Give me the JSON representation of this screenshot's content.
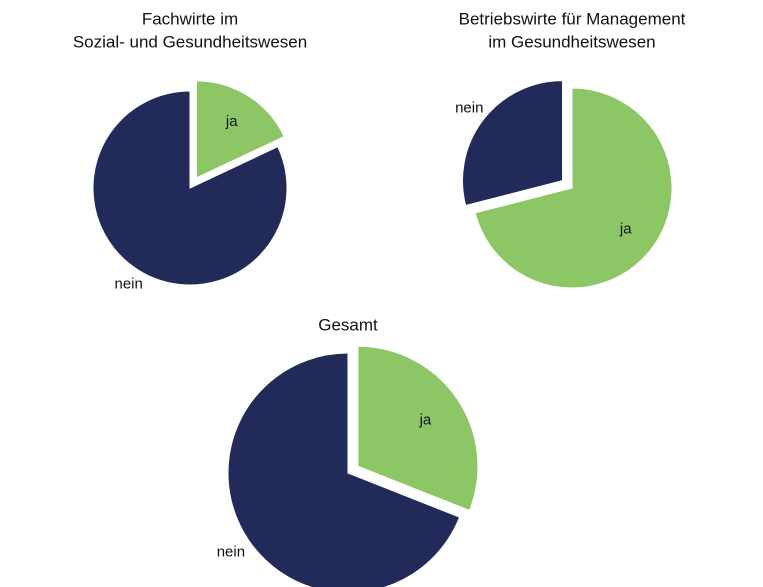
{
  "chart_data": [
    {
      "type": "pie",
      "title": [
        "Fachwirte im",
        "Sozial- und Gesundheitswesen"
      ],
      "categories": [
        "ja",
        "nein"
      ],
      "values": [
        18,
        82
      ],
      "colors": [
        "#8cc665",
        "#222a5a"
      ],
      "explode": [
        true,
        false
      ]
    },
    {
      "type": "pie",
      "title": [
        "Betriebswirte für Management",
        "im Gesundheitswesen"
      ],
      "categories": [
        "ja",
        "nein"
      ],
      "values": [
        71,
        29
      ],
      "colors": [
        "#8cc665",
        "#222a5a"
      ],
      "explode": [
        false,
        true
      ]
    },
    {
      "type": "pie",
      "title": [
        "Gesamt"
      ],
      "categories": [
        "ja",
        "nein"
      ],
      "values": [
        31,
        69
      ],
      "colors": [
        "#8cc665",
        "#222a5a"
      ],
      "explode": [
        true,
        false
      ]
    }
  ]
}
